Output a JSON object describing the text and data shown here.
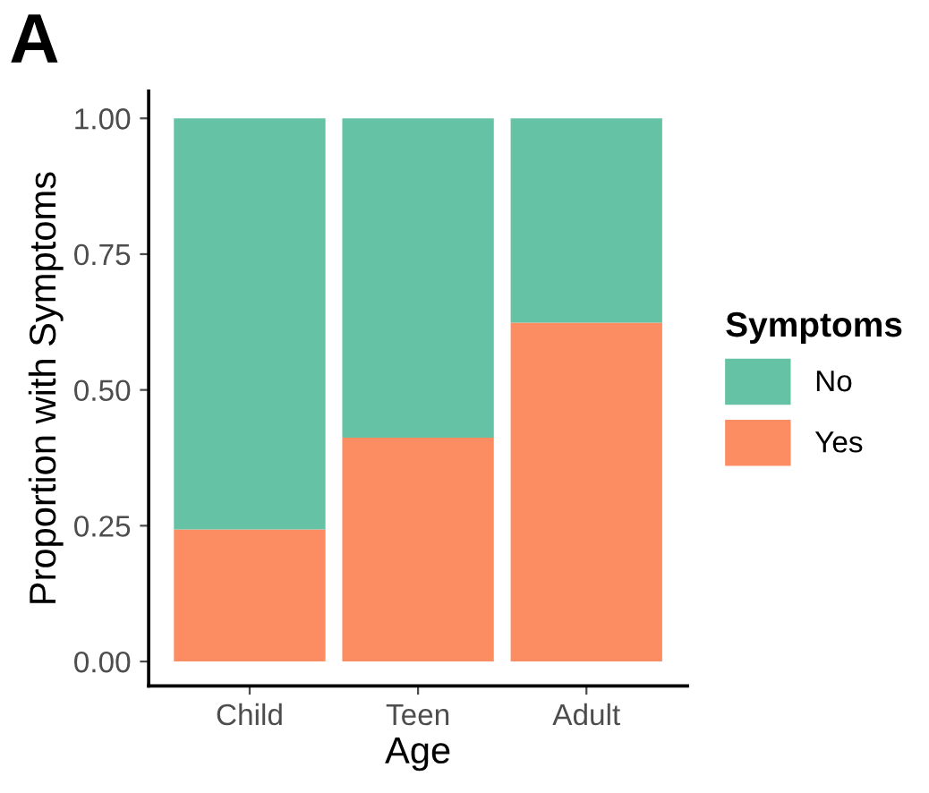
{
  "chart_data": {
    "type": "bar",
    "title": "A",
    "xlabel": "Age",
    "ylabel": "Proportion with Symptoms",
    "legend_title": "Symptoms",
    "categories": [
      "Child",
      "Teen",
      "Adult"
    ],
    "stacked": true,
    "series": [
      {
        "name": "Yes",
        "color": "#fc8d62",
        "values": [
          0.243,
          0.412,
          0.624
        ]
      },
      {
        "name": "No",
        "color": "#66c2a5",
        "values": [
          0.757,
          0.588,
          0.376
        ]
      }
    ],
    "ylim": [
      -0.045,
      1.05
    ],
    "yticks": [
      {
        "value": 0,
        "label": "0.00"
      },
      {
        "value": 0.25,
        "label": "0.25"
      },
      {
        "value": 0.5,
        "label": "0.50"
      },
      {
        "value": 0.75,
        "label": "0.75"
      },
      {
        "value": 1,
        "label": "1.00"
      }
    ],
    "grid": false,
    "legend": "right"
  }
}
